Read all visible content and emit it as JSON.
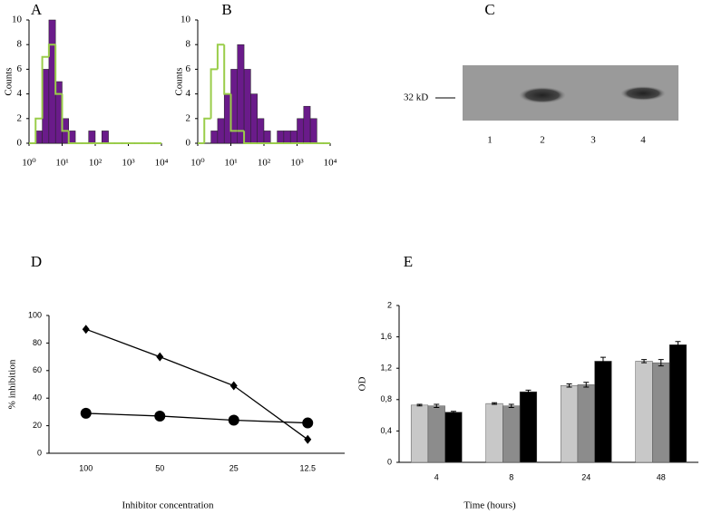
{
  "chart_data": [
    {
      "type": "histogram",
      "title": "A",
      "ylabel": "Counts",
      "log_x": true,
      "bins": [
        1,
        1.58,
        2.51,
        3.98,
        6.31,
        10,
        15.8,
        25.1,
        39.8,
        63.1,
        100,
        158,
        251,
        398,
        631,
        1000,
        1585,
        2512,
        3981,
        6310,
        10000
      ],
      "series": [
        {
          "color": "#6a1b8a",
          "style": "filled",
          "values": [
            0,
            1,
            6,
            10,
            5,
            2,
            1,
            0,
            0,
            1,
            0,
            1,
            0,
            0,
            0,
            0,
            0,
            0,
            0,
            0
          ]
        },
        {
          "color": "#9acd4a",
          "style": "outline",
          "values": [
            0,
            2,
            7,
            8,
            4,
            1,
            0,
            0,
            0,
            0,
            0,
            0,
            0,
            0,
            0,
            0,
            0,
            0,
            0,
            0
          ]
        }
      ],
      "xlim": [
        1,
        10000
      ],
      "xticks": [
        {
          "value": 1,
          "label": "10⁰"
        },
        {
          "value": 10,
          "label": "10¹"
        },
        {
          "value": 100,
          "label": "10²"
        },
        {
          "value": 1000,
          "label": "10³"
        },
        {
          "value": 10000,
          "label": "10⁴"
        }
      ],
      "ylim": [
        0,
        10
      ],
      "yticks": [
        0,
        2,
        4,
        6,
        8,
        10
      ]
    },
    {
      "type": "histogram",
      "title": "B",
      "ylabel": "Counts",
      "log_x": true,
      "bins": [
        1,
        1.58,
        2.51,
        3.98,
        6.31,
        10,
        15.8,
        25.1,
        39.8,
        63.1,
        100,
        158,
        251,
        398,
        631,
        1000,
        1585,
        2512,
        3981,
        6310,
        10000
      ],
      "series": [
        {
          "color": "#6a1b8a",
          "style": "filled",
          "values": [
            0,
            0,
            1,
            2,
            4,
            6,
            8,
            6,
            4,
            2,
            1,
            0,
            1,
            1,
            1,
            2,
            3,
            2,
            0,
            0
          ]
        },
        {
          "color": "#9acd4a",
          "style": "outline",
          "values": [
            0,
            2,
            6,
            8,
            4,
            1,
            1,
            0,
            0,
            0,
            0,
            0,
            0,
            0,
            0,
            0,
            0,
            0,
            0,
            0
          ]
        }
      ],
      "xlim": [
        1,
        10000
      ],
      "xticks": [
        {
          "value": 1,
          "label": "10⁰"
        },
        {
          "value": 10,
          "label": "10¹"
        },
        {
          "value": 100,
          "label": "10²"
        },
        {
          "value": 1000,
          "label": "10³"
        },
        {
          "value": 10000,
          "label": "10⁴"
        }
      ],
      "ylim": [
        0,
        10
      ],
      "yticks": [
        0,
        2,
        4,
        6,
        8,
        10
      ]
    },
    {
      "type": "line",
      "title": "D",
      "ylabel": "% inhibition",
      "xlabel": "Inhibitor concentration",
      "categories": [
        "100",
        "50",
        "25",
        "12.5"
      ],
      "series": [
        {
          "color": "#000000",
          "marker": "diamond",
          "values": [
            90,
            70,
            49,
            10
          ]
        },
        {
          "color": "#000000",
          "marker": "circle",
          "values": [
            29,
            27,
            24,
            22
          ]
        }
      ],
      "ylim": [
        0,
        100
      ],
      "yticks": [
        0,
        20,
        40,
        60,
        80,
        100
      ]
    },
    {
      "type": "bar",
      "title": "E",
      "ylabel": "OD",
      "xlabel": "Time (hours)",
      "categories": [
        "4",
        "8",
        "24",
        "48"
      ],
      "series": [
        {
          "color": "#c8c8c8",
          "values": [
            0.73,
            0.75,
            0.98,
            1.29
          ],
          "errors": [
            0.01,
            0.01,
            0.02,
            0.02
          ]
        },
        {
          "color": "#8c8c8c",
          "values": [
            0.72,
            0.72,
            0.99,
            1.27
          ],
          "errors": [
            0.02,
            0.02,
            0.03,
            0.04
          ]
        },
        {
          "color": "#000000",
          "values": [
            0.64,
            0.9,
            1.29,
            1.5
          ],
          "errors": [
            0.01,
            0.02,
            0.05,
            0.04
          ]
        }
      ],
      "ylim": [
        0,
        2
      ],
      "yticks": [
        0,
        {
          "value": 0.4,
          "label": "0,4"
        },
        {
          "value": 0.8,
          "label": "0,8"
        },
        {
          "value": 1.2,
          "label": "1,2"
        },
        {
          "value": 1.6,
          "label": "1,6"
        },
        2
      ]
    }
  ],
  "blot": {
    "title": "C",
    "marker": "32 kD",
    "lanes": [
      "1",
      "2",
      "3",
      "4"
    ]
  }
}
